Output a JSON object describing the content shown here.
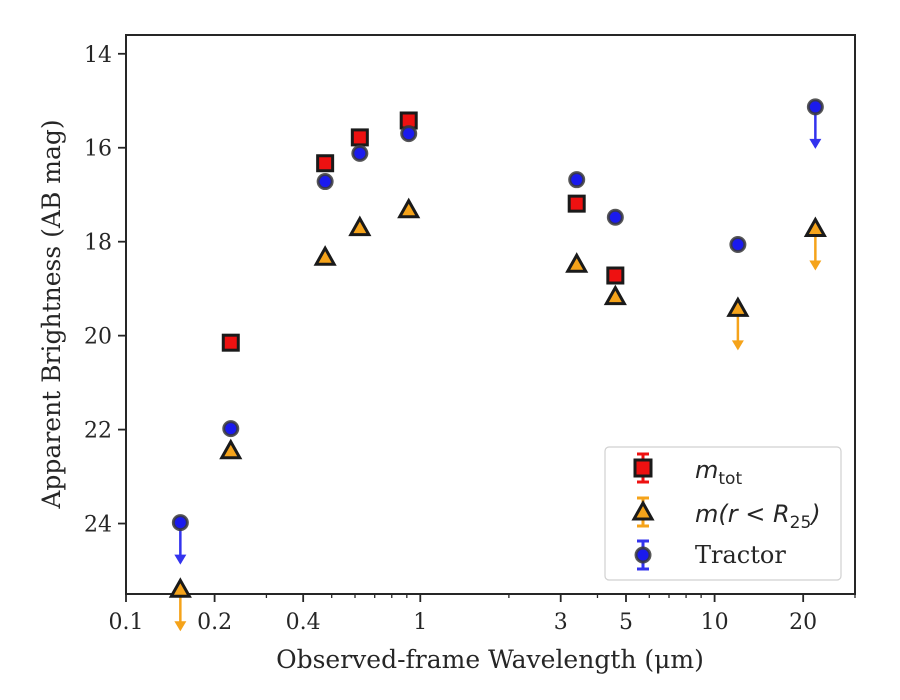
{
  "chart_data": {
    "type": "scatter",
    "xlabel": "Observed-frame Wavelength (μm)",
    "ylabel": "Apparent Brightness (AB mag)",
    "xscale": "log",
    "xlim": [
      0.1,
      30
    ],
    "ylim": [
      25.5,
      13.6
    ],
    "y_inverted": true,
    "grid": false,
    "legend_position": "lower-right",
    "x_ticks": [
      {
        "value": 0.1,
        "label": "0.1"
      },
      {
        "value": 0.2,
        "label": "0.2"
      },
      {
        "value": 0.4,
        "label": "0.4"
      },
      {
        "value": 1,
        "label": "1"
      },
      {
        "value": 3,
        "label": "3"
      },
      {
        "value": 5,
        "label": "5"
      },
      {
        "value": 10,
        "label": "10"
      },
      {
        "value": 20,
        "label": "20"
      }
    ],
    "y_ticks": [
      {
        "value": 14,
        "label": "14"
      },
      {
        "value": 16,
        "label": "16"
      },
      {
        "value": 18,
        "label": "18"
      },
      {
        "value": 20,
        "label": "20"
      },
      {
        "value": 22,
        "label": "22"
      },
      {
        "value": 24,
        "label": "24"
      }
    ],
    "series": [
      {
        "key": "mtot",
        "marker": "square",
        "color": "#ee1111",
        "edge_color": "#1a1a1a",
        "errbar_color": "#ee1111",
        "points": [
          {
            "x": 0.227,
            "y": 20.15
          },
          {
            "x": 0.475,
            "y": 16.33
          },
          {
            "x": 0.6231,
            "y": 15.78
          },
          {
            "x": 0.9134,
            "y": 15.42
          },
          {
            "x": 3.4,
            "y": 17.19
          },
          {
            "x": 4.6,
            "y": 18.72
          }
        ]
      },
      {
        "key": "mr25",
        "marker": "triangle",
        "color": "#f5a31a",
        "edge_color": "#1a1a1a",
        "errbar_color": "#f5a31a",
        "points": [
          {
            "x": 0.227,
            "y": 22.45
          },
          {
            "x": 0.475,
            "y": 18.33
          },
          {
            "x": 0.6231,
            "y": 17.7
          },
          {
            "x": 0.9134,
            "y": 17.32
          },
          {
            "x": 3.4,
            "y": 18.48
          },
          {
            "x": 4.6,
            "y": 19.17
          },
          {
            "x": 12.0,
            "y": 19.42,
            "upper_limit": true
          },
          {
            "x": 22.0,
            "y": 17.72,
            "upper_limit": true
          },
          {
            "x": 0.153,
            "y": 25.4,
            "upper_limit": true
          }
        ]
      },
      {
        "name": "Tractor",
        "key": "tractor",
        "marker": "circle",
        "color": "#1a1aee",
        "edge_color": "#3a3a3a",
        "errbar_color": "#3333ee",
        "points": [
          {
            "x": 0.153,
            "y": 23.98,
            "upper_limit": true
          },
          {
            "x": 0.227,
            "y": 21.98
          },
          {
            "x": 0.475,
            "y": 16.72
          },
          {
            "x": 0.6231,
            "y": 16.12
          },
          {
            "x": 0.9134,
            "y": 15.7
          },
          {
            "x": 3.4,
            "y": 16.68
          },
          {
            "x": 4.6,
            "y": 17.48
          },
          {
            "x": 12.0,
            "y": 18.06
          },
          {
            "x": 22.0,
            "y": 15.13,
            "upper_limit": true
          }
        ]
      }
    ],
    "legend": {
      "mtot": {
        "base": "m",
        "sub": "tot"
      },
      "mr25": {
        "prefix": "m(r < R",
        "sub": "25",
        "suffix": ")"
      },
      "tractor": "Tractor"
    }
  }
}
